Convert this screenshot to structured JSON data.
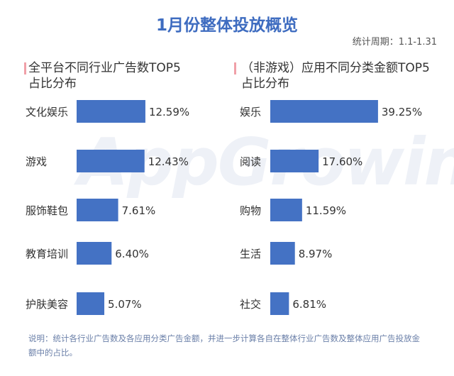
{
  "title": "1月份整体投放概览",
  "period": "统计周期：1.1-1.31",
  "watermark": "AppGrowing",
  "bar_color": "#4472c4",
  "accent_mark_color": "#f0a0a8",
  "chart_data": [
    {
      "type": "bar",
      "orientation": "horizontal",
      "title": "全平台不同行业广告数TOP5占比分布",
      "title_lines": [
        "全平台不同行业广告数TOP5",
        "占比分布"
      ],
      "categories": [
        "文化娱乐",
        "游戏",
        "服饰鞋包",
        "教育培训",
        "护肤美容"
      ],
      "values": [
        12.59,
        12.43,
        7.61,
        6.4,
        5.07
      ],
      "labels": [
        "12.59%",
        "12.43%",
        "7.61%",
        "6.40%",
        "5.07%"
      ],
      "unit": "%"
    },
    {
      "type": "bar",
      "orientation": "horizontal",
      "title": "（非游戏）应用不同分类金额TOP5占比分布",
      "title_lines": [
        "（非游戏）应用不同分类金额TOP5",
        "占比分布"
      ],
      "categories": [
        "娱乐",
        "阅读",
        "购物",
        "生活",
        "社交"
      ],
      "values": [
        39.25,
        17.6,
        11.59,
        8.97,
        6.81
      ],
      "labels": [
        "39.25%",
        "17.60%",
        "11.59%",
        "8.97%",
        "6.81%"
      ],
      "unit": "%"
    }
  ],
  "footnote": "说明：统计各行业广告数及各应用分类广告金额，并进一步计算各自在整体行业广告数及整体应用广告投放金额中的占比。"
}
